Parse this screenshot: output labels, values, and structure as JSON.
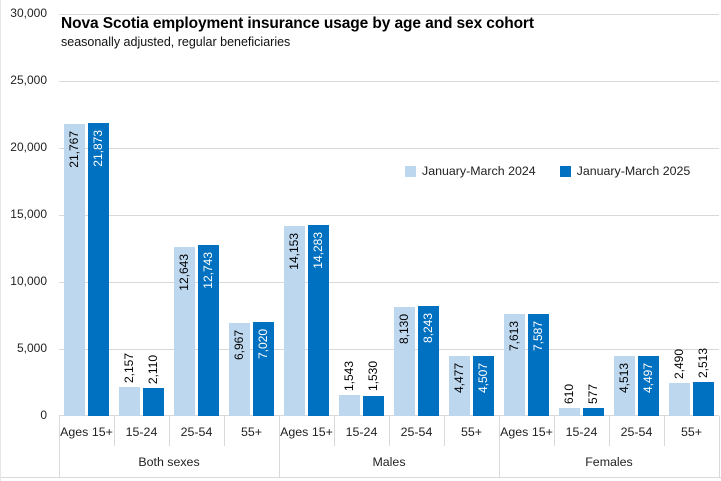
{
  "chart_data": {
    "type": "bar",
    "title": "Nova Scotia employment insurance usage by age and sex cohort",
    "subtitle": "seasonally adjusted, regular beneficiaries",
    "xlabel": "",
    "ylabel": "",
    "ylim": [
      0,
      30000
    ],
    "ytick_interval": 5000,
    "ytick_labels": [
      "0",
      "5,000",
      "10,000",
      "15,000",
      "20,000",
      "25,000",
      "30,000"
    ],
    "grid": true,
    "legend_position": "middle-right",
    "groups": [
      "Both sexes",
      "Males",
      "Females"
    ],
    "categories": [
      "Ages 15+",
      "15-24",
      "25-54",
      "55+"
    ],
    "series": [
      {
        "name": "January-March 2024",
        "color": "#BDD7EE",
        "values": [
          21767,
          2157,
          12643,
          6967,
          14153,
          1543,
          8130,
          4477,
          7613,
          610,
          4513,
          2490
        ]
      },
      {
        "name": "January-March 2025",
        "color": "#0070C0",
        "values": [
          21873,
          2110,
          12743,
          7020,
          14283,
          1530,
          8243,
          4507,
          7587,
          577,
          4497,
          2513
        ]
      }
    ],
    "data_labels": true
  },
  "colors": {
    "gridline": "#D9D9D9",
    "axis_text": "#222222",
    "label_on_light_bar": "#000000",
    "label_on_dark_bar": "#FFFFFF",
    "background": "#FFFFFF"
  }
}
